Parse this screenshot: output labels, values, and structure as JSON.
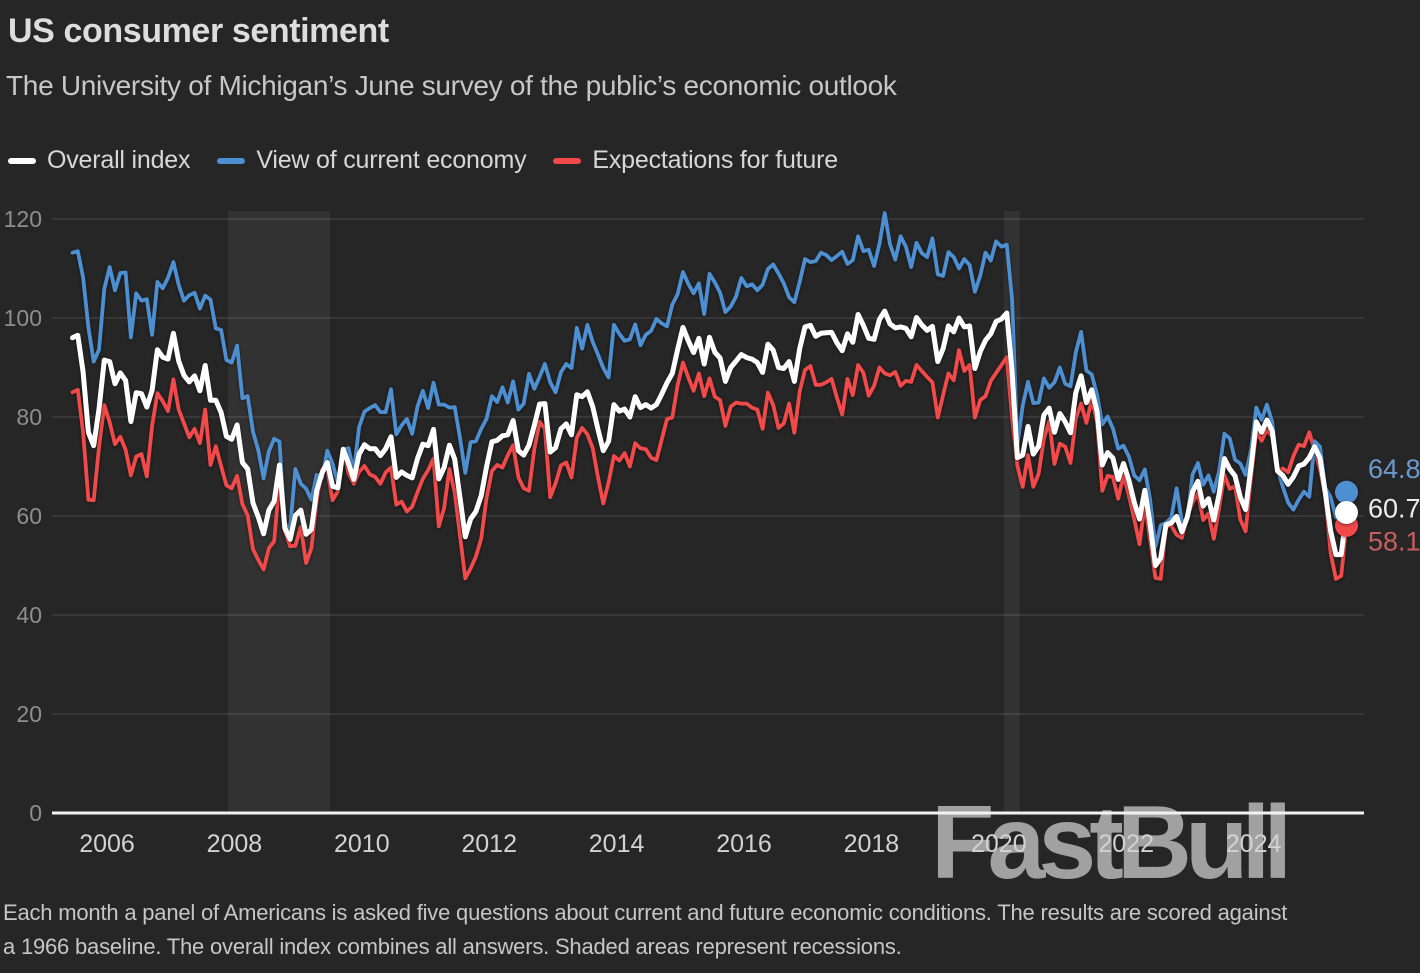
{
  "header": {
    "title": "US consumer sentiment",
    "subtitle": "The University of Michigan’s June survey of the public’s economic outlook"
  },
  "legend": [
    {
      "label": "Overall index",
      "color": "#ffffff"
    },
    {
      "label": "View of current economy",
      "color": "#4e8fd2"
    },
    {
      "label": "Expectations for future",
      "color": "#f24a4a"
    }
  ],
  "watermark": {
    "text": "FastBull",
    "color": "#b3b3b3"
  },
  "footer": {
    "lines": [
      "Each month a panel of Americans is asked five questions about current and future economic conditions. The results are scored against",
      "a 1966 baseline. The overall index combines all answers. Shaded areas represent recessions."
    ]
  },
  "colors": {
    "background": "#262626",
    "gridline": "#3e3e3e",
    "axis_line": "#f2f2f2",
    "recession_band": "rgba(255,255,255,0.06)",
    "y_tick_text": "#8e8e8e",
    "x_tick_text": "#d2d2d2"
  },
  "chart_data": {
    "type": "line",
    "title": "US consumer sentiment",
    "xlabel": "",
    "ylabel": "",
    "x_start": "2005-06",
    "x_end": "2025-06",
    "frequency": "monthly",
    "ylim": [
      0,
      120
    ],
    "y_ticks": [
      0,
      20,
      40,
      60,
      80,
      100,
      120
    ],
    "x_tick_years": [
      2006,
      2008,
      2010,
      2012,
      2014,
      2016,
      2018,
      2020,
      2022,
      2024
    ],
    "grid": "horizontal",
    "legend_position": "top-left",
    "recession_bands": [
      {
        "from": 2007.9,
        "to": 2009.5
      },
      {
        "from": 2020.08,
        "to": 2020.33
      }
    ],
    "series": [
      {
        "name": "Overall index",
        "color": "#ffffff",
        "label_color": "#ededed",
        "end_label": "60.7",
        "values": [
          96.0,
          96.5,
          89.1,
          76.9,
          74.2,
          81.6,
          91.5,
          91.2,
          86.7,
          88.9,
          87.4,
          79.1,
          84.9,
          84.7,
          82.0,
          85.4,
          93.6,
          92.1,
          91.7,
          96.9,
          91.3,
          88.4,
          87.1,
          88.3,
          85.3,
          90.4,
          83.4,
          83.4,
          80.9,
          76.1,
          75.5,
          78.4,
          70.8,
          69.5,
          62.6,
          59.8,
          56.4,
          61.2,
          63.0,
          70.3,
          57.6,
          55.3,
          60.1,
          61.2,
          56.3,
          57.3,
          65.1,
          68.7,
          70.8,
          66.0,
          65.7,
          73.5,
          70.6,
          67.4,
          72.5,
          74.4,
          73.6,
          73.6,
          72.2,
          73.6,
          76.0,
          67.8,
          68.9,
          68.2,
          67.7,
          71.6,
          74.5,
          74.2,
          77.5,
          67.5,
          69.8,
          74.3,
          71.5,
          63.7,
          55.8,
          59.4,
          60.9,
          64.1,
          69.9,
          75.0,
          75.3,
          76.2,
          76.4,
          79.3,
          73.2,
          72.3,
          74.3,
          78.3,
          82.6,
          82.7,
          72.9,
          73.8,
          77.6,
          78.6,
          76.4,
          84.5,
          84.1,
          85.1,
          82.1,
          77.5,
          73.2,
          75.1,
          82.5,
          81.2,
          81.6,
          80.0,
          84.1,
          81.9,
          82.5,
          81.8,
          82.5,
          84.6,
          86.9,
          88.8,
          93.6,
          98.1,
          95.4,
          93.0,
          95.9,
          90.7,
          96.1,
          93.1,
          91.9,
          87.2,
          90.0,
          91.3,
          92.6,
          92.0,
          91.7,
          91.0,
          89.0,
          94.7,
          93.5,
          90.0,
          89.8,
          91.2,
          87.2,
          93.8,
          98.2,
          98.5,
          96.3,
          96.9,
          97.0,
          97.1,
          95.0,
          93.4,
          96.8,
          95.1,
          100.7,
          98.5,
          95.9,
          95.7,
          99.7,
          101.4,
          98.8,
          98.0,
          98.2,
          97.9,
          96.2,
          100.1,
          98.6,
          97.5,
          98.3,
          91.2,
          93.8,
          98.4,
          97.2,
          100.0,
          98.2,
          98.4,
          89.8,
          93.2,
          95.5,
          96.8,
          99.3,
          99.8,
          101.0,
          89.1,
          71.8,
          72.3,
          78.1,
          72.5,
          74.1,
          80.4,
          81.8,
          76.9,
          80.7,
          79.0,
          76.8,
          84.9,
          88.3,
          82.9,
          85.5,
          81.2,
          70.3,
          72.8,
          71.7,
          67.4,
          70.6,
          67.2,
          62.8,
          59.4,
          65.2,
          58.4,
          50.0,
          51.5,
          58.2,
          58.6,
          59.9,
          56.8,
          59.7,
          64.9,
          67.0,
          62.0,
          63.5,
          59.2,
          64.4,
          71.6,
          69.5,
          68.1,
          63.8,
          61.3,
          69.7,
          79.0,
          76.9,
          79.4,
          77.2,
          69.1,
          68.2,
          66.4,
          67.9,
          70.1,
          70.5,
          71.8,
          74.0,
          71.7,
          64.7,
          57.0,
          52.2,
          52.2,
          60.7
        ]
      },
      {
        "name": "View of current economy",
        "color": "#4e8fd2",
        "label_color": "#6d9ace",
        "end_label": "64.8",
        "values": [
          113.2,
          113.5,
          108.2,
          98.1,
          91.2,
          93.6,
          105.9,
          110.3,
          105.6,
          109.1,
          109.2,
          96.1,
          105.0,
          103.5,
          103.8,
          96.6,
          107.3,
          106.0,
          108.1,
          111.3,
          106.7,
          103.5,
          104.6,
          105.1,
          101.9,
          104.5,
          103.7,
          97.9,
          97.6,
          91.5,
          91.0,
          94.4,
          83.8,
          84.2,
          77.0,
          73.3,
          67.6,
          73.1,
          75.6,
          75.0,
          58.4,
          57.5,
          69.5,
          66.5,
          65.5,
          63.3,
          68.3,
          67.7,
          73.2,
          70.5,
          66.6,
          73.4,
          73.7,
          68.8,
          78.0,
          81.1,
          81.8,
          82.4,
          81.0,
          81.0,
          85.6,
          76.5,
          78.3,
          79.6,
          76.6,
          82.1,
          85.3,
          81.8,
          86.9,
          82.5,
          82.5,
          81.9,
          82.0,
          75.8,
          68.7,
          74.9,
          75.1,
          77.6,
          79.6,
          84.2,
          83.0,
          86.0,
          82.9,
          87.2,
          81.5,
          82.7,
          88.7,
          85.7,
          88.1,
          90.7,
          87.0,
          85.0,
          89.0,
          90.7,
          89.9,
          98.0,
          93.8,
          98.6,
          95.2,
          92.6,
          89.9,
          88.0,
          98.6,
          96.8,
          95.4,
          95.7,
          98.7,
          94.5,
          96.6,
          97.4,
          99.8,
          98.9,
          98.3,
          102.7,
          104.8,
          109.3,
          106.9,
          105.0,
          107.0,
          100.8,
          108.9,
          107.2,
          105.1,
          101.2,
          102.3,
          104.3,
          108.1,
          106.4,
          106.8,
          105.6,
          106.7,
          109.9,
          110.8,
          109.0,
          107.0,
          104.2,
          103.2,
          107.3,
          111.9,
          111.3,
          111.5,
          113.2,
          112.7,
          111.7,
          112.5,
          113.4,
          110.9,
          111.7,
          116.5,
          113.5,
          113.8,
          110.5,
          114.9,
          121.2,
          114.9,
          111.8,
          116.5,
          114.4,
          110.3,
          115.2,
          113.1,
          112.3,
          116.1,
          108.8,
          108.5,
          113.3,
          112.3,
          110.0,
          111.9,
          110.7,
          105.3,
          108.5,
          113.2,
          111.6,
          115.5,
          114.4,
          114.8,
          103.7,
          74.3,
          82.3,
          87.1,
          82.8,
          82.9,
          87.8,
          85.9,
          87.0,
          90.0,
          86.7,
          86.2,
          93.0,
          97.2,
          89.4,
          88.6,
          84.5,
          78.5,
          80.1,
          77.7,
          73.6,
          74.2,
          72.0,
          68.2,
          67.2,
          69.4,
          63.3,
          53.8,
          58.1,
          58.6,
          59.7,
          65.6,
          58.8,
          59.4,
          68.4,
          70.7,
          66.3,
          68.2,
          64.9,
          69.0,
          76.6,
          75.7,
          71.4,
          70.6,
          68.3,
          73.3,
          81.9,
          79.4,
          82.5,
          79.0,
          69.6,
          65.9,
          62.7,
          61.3,
          63.3,
          64.9,
          63.9,
          75.1,
          74.0,
          65.7,
          63.8,
          59.8,
          58.9,
          64.8
        ]
      },
      {
        "name": "Expectations for future",
        "color": "#f24a4a",
        "label_color": "#c65f5f",
        "end_label": "58.1",
        "values": [
          85.0,
          85.5,
          76.9,
          63.3,
          63.2,
          73.9,
          82.4,
          78.9,
          74.5,
          76.0,
          73.4,
          68.2,
          72.0,
          72.5,
          68.0,
          78.2,
          84.8,
          83.2,
          81.2,
          87.6,
          81.5,
          78.7,
          75.9,
          77.6,
          74.7,
          81.5,
          70.3,
          74.1,
          70.1,
          66.2,
          65.6,
          68.1,
          62.4,
          60.1,
          53.3,
          51.1,
          49.2,
          53.5,
          54.9,
          67.2,
          57.0,
          53.9,
          54.0,
          57.8,
          50.5,
          53.5,
          63.1,
          69.4,
          69.2,
          63.2,
          65.0,
          73.5,
          68.6,
          66.5,
          68.9,
          70.1,
          68.4,
          67.9,
          66.5,
          68.8,
          69.8,
          62.3,
          62.9,
          60.9,
          61.9,
          64.8,
          67.5,
          69.3,
          71.6,
          57.9,
          61.6,
          69.5,
          64.8,
          56.0,
          47.4,
          49.4,
          51.8,
          55.4,
          63.6,
          69.1,
          70.3,
          69.8,
          72.3,
          74.3,
          67.8,
          65.6,
          65.1,
          73.5,
          79.0,
          77.6,
          63.8,
          66.6,
          70.2,
          70.8,
          67.8,
          75.8,
          77.8,
          76.5,
          73.7,
          67.8,
          62.5,
          66.8,
          72.1,
          71.2,
          72.7,
          70.0,
          74.7,
          73.7,
          73.5,
          71.8,
          71.3,
          75.4,
          79.6,
          79.9,
          86.4,
          91.0,
          88.0,
          85.3,
          88.8,
          84.2,
          87.8,
          84.1,
          83.4,
          78.2,
          82.1,
          82.9,
          82.7,
          82.7,
          81.9,
          81.5,
          77.6,
          84.9,
          82.4,
          77.8,
          78.7,
          82.7,
          76.8,
          85.2,
          89.5,
          90.3,
          86.5,
          86.5,
          87.0,
          87.7,
          83.9,
          80.5,
          87.7,
          84.4,
          90.5,
          88.9,
          84.3,
          86.3,
          90.0,
          88.8,
          88.4,
          89.1,
          86.3,
          87.3,
          87.1,
          90.5,
          89.3,
          88.1,
          87.0,
          79.9,
          84.4,
          88.8,
          87.4,
          93.5,
          89.3,
          90.5,
          79.9,
          83.4,
          84.2,
          87.3,
          88.9,
          90.5,
          92.1,
          79.7,
          70.1,
          65.9,
          72.3,
          65.9,
          68.5,
          75.6,
          79.2,
          70.5,
          74.6,
          74.0,
          70.7,
          79.7,
          82.7,
          78.8,
          83.5,
          79.0,
          65.1,
          68.1,
          67.9,
          63.5,
          68.3,
          64.1,
          59.4,
          54.3,
          62.5,
          55.2,
          47.5,
          47.3,
          58.0,
          58.0,
          56.2,
          55.6,
          59.9,
          62.7,
          64.7,
          59.2,
          60.5,
          55.4,
          61.5,
          68.3,
          65.5,
          66.0,
          59.3,
          56.9,
          67.4,
          77.1,
          75.2,
          77.4,
          76.0,
          68.8,
          69.6,
          68.8,
          72.1,
          74.4,
          74.1,
          76.9,
          73.3,
          69.3,
          64.0,
          52.6,
          47.3,
          47.9,
          58.1
        ]
      }
    ]
  }
}
